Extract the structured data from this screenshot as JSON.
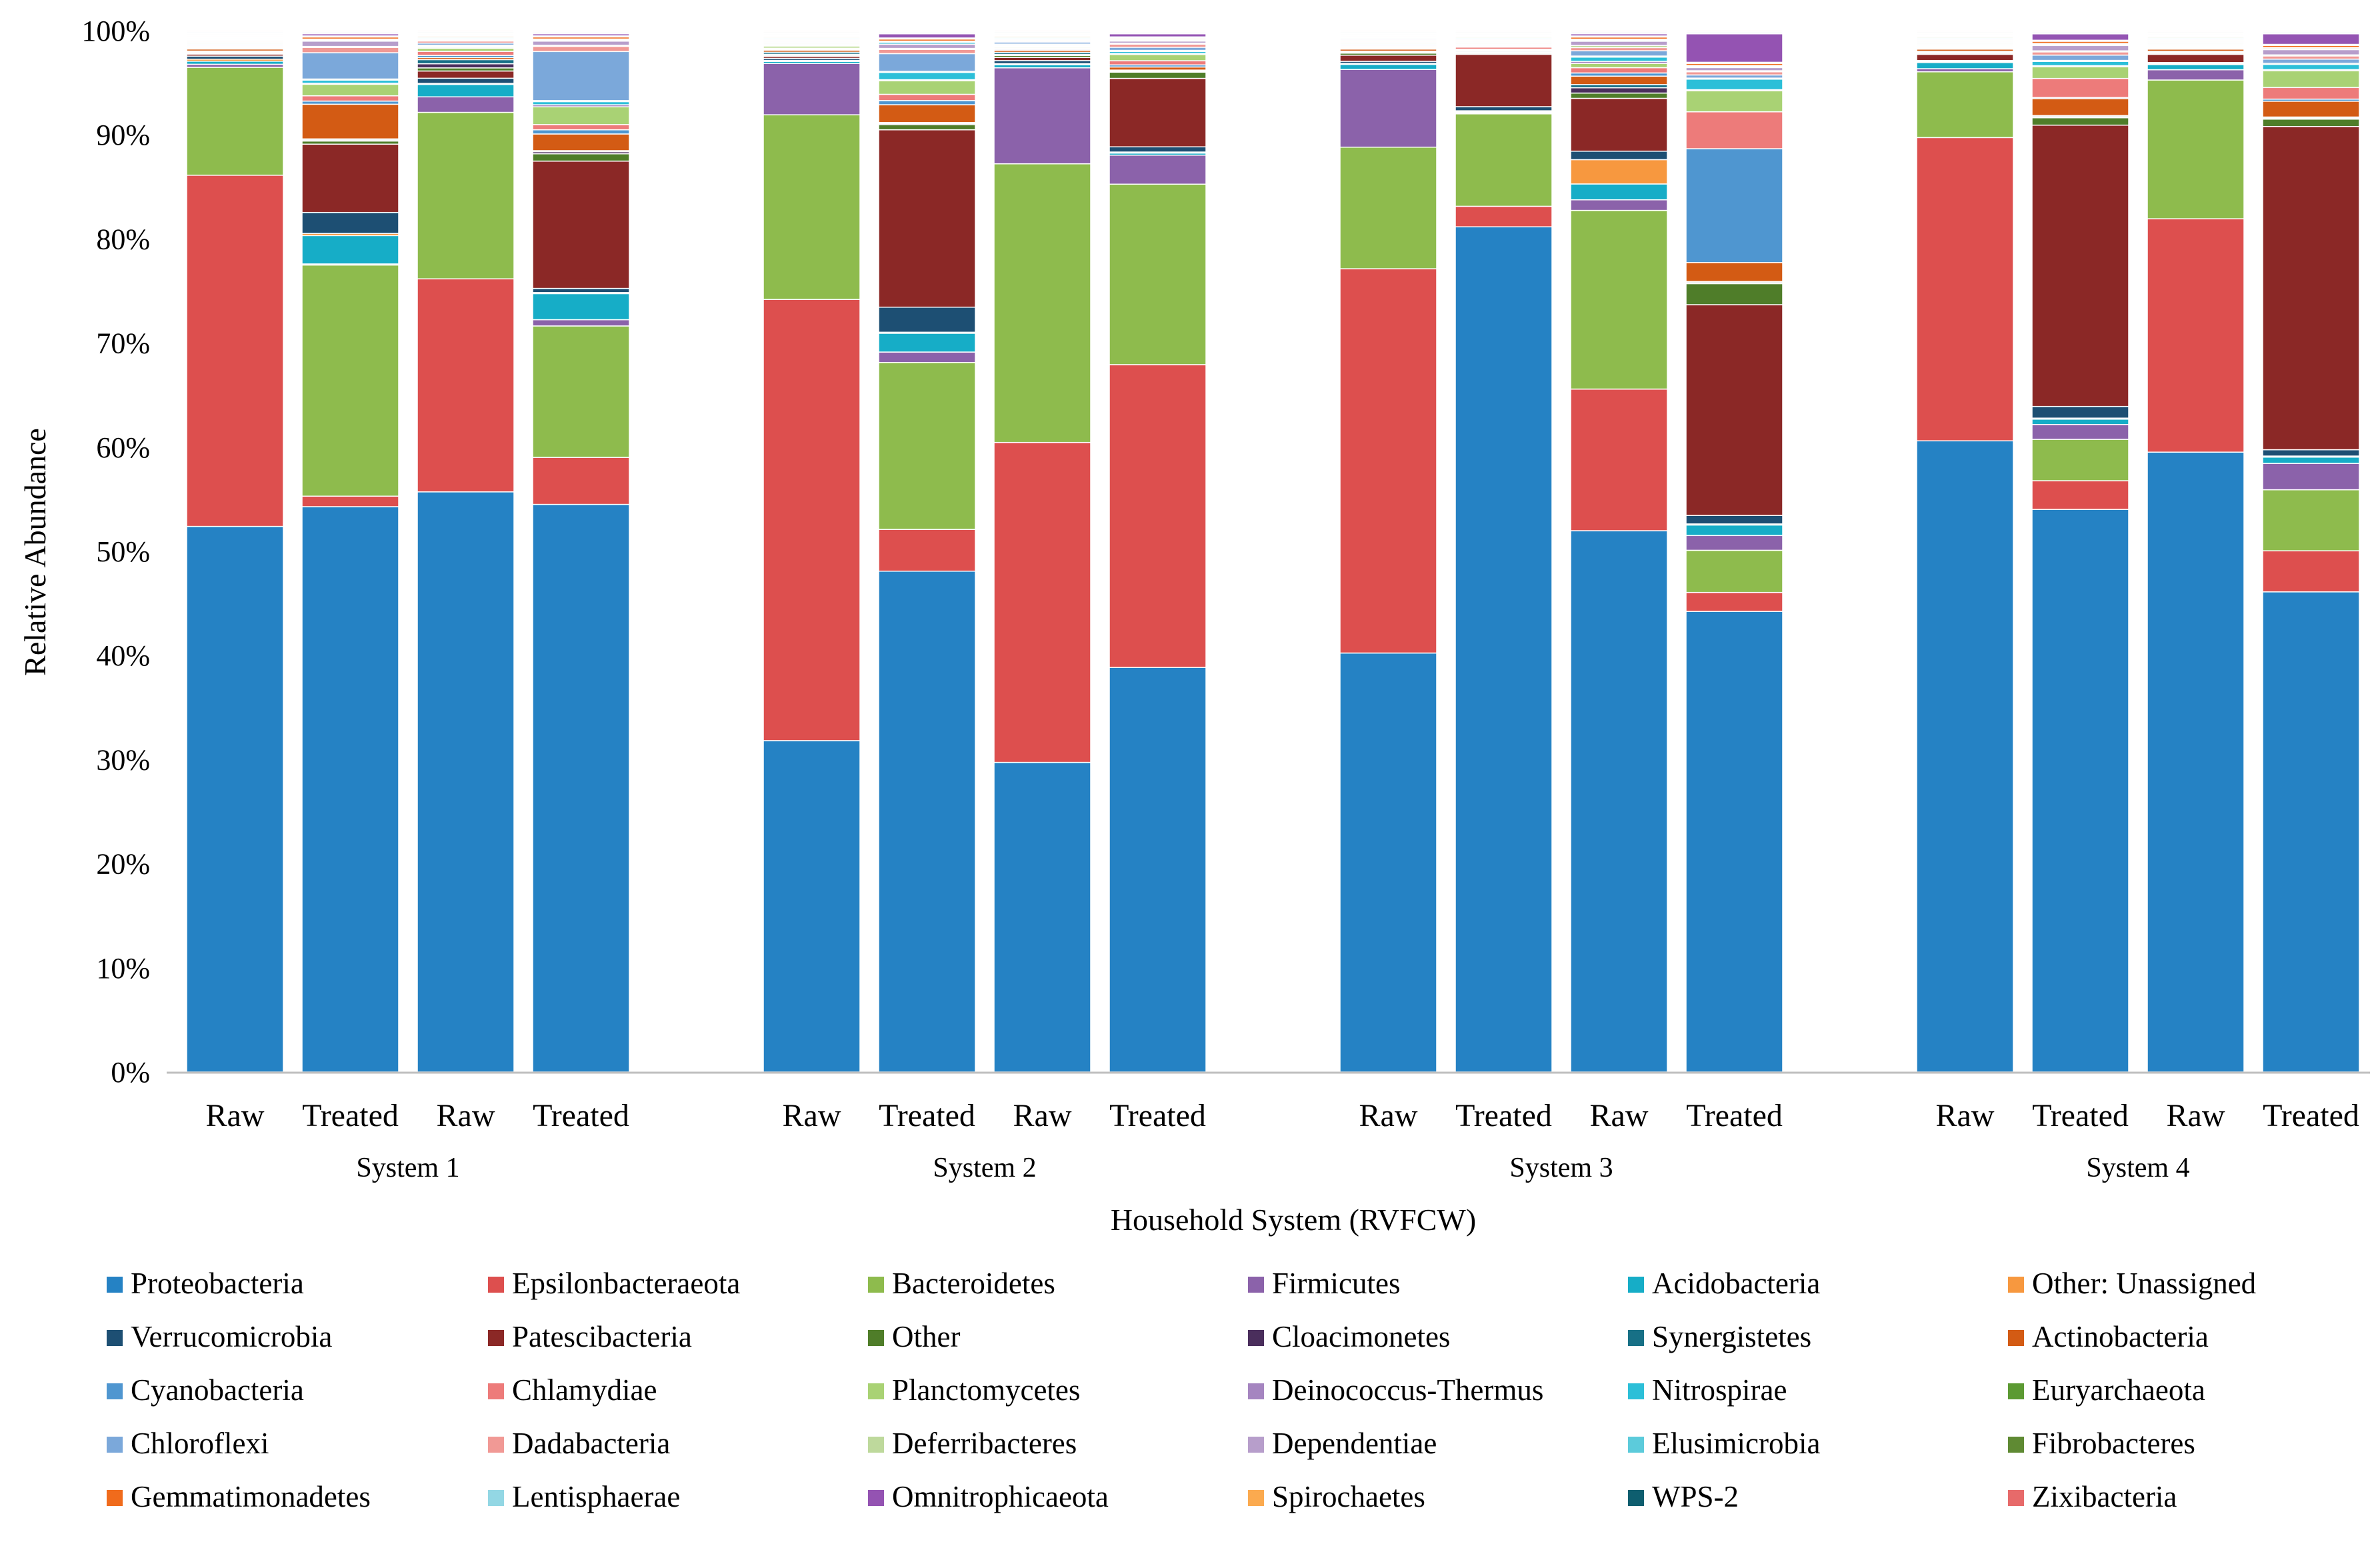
{
  "chart_data": {
    "type": "stacked_bar_100",
    "ylabel": "Relative Abundance",
    "xlabel": "Household System (RVFCW)",
    "ylim": [
      0,
      100
    ],
    "ytick_labels": [
      "0%",
      "10%",
      "20%",
      "30%",
      "40%",
      "50%",
      "60%",
      "70%",
      "80%",
      "90%",
      "100%"
    ],
    "legend_position": "bottom",
    "groups": [
      "System 1",
      "System 2",
      "System 3",
      "System 4"
    ],
    "categories": [
      "Raw",
      "Treated",
      "Raw",
      "Treated",
      "Raw",
      "Treated",
      "Raw",
      "Treated",
      "Raw",
      "Treated",
      "Raw",
      "Treated",
      "Raw",
      "Treated",
      "Raw",
      "Treated"
    ],
    "group_index": [
      0,
      0,
      0,
      0,
      1,
      1,
      1,
      1,
      2,
      2,
      2,
      2,
      3,
      3,
      3,
      3
    ],
    "series": [
      {
        "name": "Proteobacteria",
        "color": "#2582c4",
        "values": [
          53.6,
          53.8,
          56.1,
          54.4,
          32.3,
          48.0,
          30.0,
          39.0,
          41.0,
          82.3,
          51.2,
          43.7,
          61.4,
          53.0,
          60.3,
          45.6
        ]
      },
      {
        "name": "Epsilonbacteraeota",
        "color": "#dd4f4e",
        "values": [
          34.5,
          1.0,
          20.6,
          4.5,
          43.0,
          4.0,
          31.0,
          29.2,
          37.6,
          2.0,
          13.4,
          1.8,
          29.5,
          2.7,
          22.7,
          3.9
        ]
      },
      {
        "name": "Bacteroidetes",
        "color": "#8ebb4d",
        "values": [
          10.6,
          22.0,
          16.1,
          12.6,
          18.0,
          16.0,
          27.0,
          17.4,
          11.9,
          9.0,
          16.9,
          4.0,
          6.4,
          3.9,
          13.5,
          5.8
        ]
      },
      {
        "name": "Firmicutes",
        "color": "#8b62aa",
        "values": [
          0.3,
          0.1,
          1.5,
          0.6,
          5.0,
          1.0,
          9.3,
          2.8,
          7.6,
          0.1,
          1.0,
          1.4,
          0.3,
          1.4,
          1.0,
          2.5
        ]
      },
      {
        "name": "Acidobacteria",
        "color": "#16adc7",
        "values": [
          0.3,
          2.7,
          1.2,
          2.5,
          0.2,
          1.8,
          0.3,
          0.2,
          0.5,
          0.1,
          1.5,
          1.0,
          0.6,
          0.5,
          0.5,
          0.6
        ]
      },
      {
        "name": "Other: Unassigned",
        "color": "#f7983f",
        "values": [
          0.2,
          0.2,
          0.1,
          0.1,
          0.1,
          0.1,
          0.1,
          0.1,
          0.1,
          0.1,
          2.3,
          0.1,
          0.1,
          0.1,
          0.1,
          0.1
        ]
      },
      {
        "name": "Verrucomicrobia",
        "color": "#1d4f73",
        "values": [
          0.3,
          2.0,
          0.5,
          0.4,
          0.2,
          2.4,
          0.3,
          0.5,
          0.2,
          0.4,
          0.8,
          0.8,
          0.1,
          1.1,
          0.1,
          0.6
        ]
      },
      {
        "name": "Patescibacteria",
        "color": "#8b2826",
        "values": [
          0.2,
          6.5,
          0.7,
          12.2,
          0.2,
          17.0,
          0.3,
          6.6,
          0.6,
          5.1,
          5.0,
          20.0,
          0.6,
          26.5,
          0.8,
          30.7
        ]
      },
      {
        "name": "Other",
        "color": "#4f7d29",
        "values": [
          0.1,
          0.3,
          0.3,
          0.7,
          0.1,
          0.5,
          0.2,
          0.6,
          0.2,
          0.1,
          0.5,
          2.0,
          0.1,
          0.7,
          0.1,
          0.7
        ]
      },
      {
        "name": "Cloacimonetes",
        "color": "#4a2e5c",
        "values": [
          0.1,
          0.1,
          0.4,
          0.2,
          0.1,
          0.1,
          0.1,
          0.1,
          0.1,
          0.1,
          0.5,
          0.1,
          0.1,
          0.1,
          0.1,
          0.1
        ]
      },
      {
        "name": "Synergistetes",
        "color": "#177086",
        "values": [
          0.1,
          0.1,
          0.4,
          0.1,
          0.2,
          0.1,
          0.2,
          0.1,
          0.1,
          0.1,
          0.3,
          0.1,
          0.1,
          0.1,
          0.1,
          0.1
        ]
      },
      {
        "name": "Actinobacteria",
        "color": "#d35b14",
        "values": [
          0.2,
          3.3,
          0.2,
          1.6,
          0.2,
          1.7,
          0.2,
          0.3,
          0.2,
          0.1,
          0.8,
          1.8,
          0.2,
          1.6,
          0.2,
          1.5
        ]
      },
      {
        "name": "Cyanobacteria",
        "color": "#4f96d0",
        "values": [
          0.1,
          0.3,
          0.2,
          0.4,
          0.1,
          0.4,
          0.1,
          0.2,
          0.1,
          0.1,
          0.3,
          10.8,
          0.1,
          0.1,
          0.1,
          0.2
        ]
      },
      {
        "name": "Chlamydiae",
        "color": "#ed7b7a",
        "values": [
          0.1,
          0.5,
          0.4,
          0.5,
          0.1,
          0.6,
          0.1,
          0.4,
          0.1,
          0.2,
          0.5,
          3.5,
          0.1,
          1.8,
          0.1,
          1.1
        ]
      },
      {
        "name": "Planctomycetes",
        "color": "#a9d274",
        "values": [
          0.1,
          1.1,
          0.3,
          1.7,
          0.2,
          1.3,
          0.1,
          0.6,
          0.1,
          0.1,
          0.4,
          2.0,
          0.1,
          1.1,
          0.1,
          1.6
        ]
      },
      {
        "name": "Deinococcus-Thermus",
        "color": "#a585c0",
        "values": [
          0.1,
          0.1,
          0.1,
          0.2,
          0.1,
          0.1,
          0.1,
          0.1,
          0.1,
          0.1,
          0.2,
          0.1,
          0.1,
          0.1,
          0.1,
          0.1
        ]
      },
      {
        "name": "Nitrospirae",
        "color": "#2cbfd8",
        "values": [
          0.1,
          0.3,
          0.1,
          0.3,
          0.1,
          0.7,
          0.1,
          0.2,
          0.1,
          0.1,
          0.4,
          1.0,
          0.1,
          0.4,
          0.1,
          0.5
        ]
      },
      {
        "name": "Euryarchaeota",
        "color": "#5c9a33",
        "values": [
          0.1,
          0.1,
          0.1,
          0.1,
          0.1,
          0.1,
          0.1,
          0.1,
          0.1,
          0.1,
          0.1,
          0.1,
          0.1,
          0.1,
          0.1,
          0.1
        ]
      },
      {
        "name": "Chloroflexi",
        "color": "#7ba8da",
        "values": [
          0.1,
          2.5,
          0.2,
          4.7,
          0.1,
          1.7,
          0.2,
          0.3,
          0.1,
          0.1,
          0.5,
          0.3,
          0.1,
          0.5,
          0.1,
          0.4
        ]
      },
      {
        "name": "Dadabacteria",
        "color": "#f19995",
        "values": [
          0.1,
          0.5,
          0.2,
          0.5,
          0.1,
          0.4,
          0.1,
          0.3,
          0.1,
          0.1,
          0.3,
          0.3,
          0.1,
          0.3,
          0.1,
          0.3
        ]
      },
      {
        "name": "Deferribacteres",
        "color": "#bed99c",
        "values": [
          0.1,
          0.1,
          0.1,
          0.1,
          0.1,
          0.1,
          0.1,
          0.1,
          0.1,
          0.1,
          0.2,
          0.1,
          0.1,
          0.1,
          0.1,
          0.1
        ]
      },
      {
        "name": "Dependentiae",
        "color": "#b79ecb",
        "values": [
          0.1,
          0.5,
          0.1,
          0.4,
          0.1,
          0.4,
          0.1,
          0.2,
          0.1,
          0.1,
          0.4,
          0.3,
          0.1,
          0.5,
          0.1,
          0.5
        ]
      },
      {
        "name": "Elusimicrobia",
        "color": "#5ccbdb",
        "values": [
          0.1,
          0.1,
          0.1,
          0.1,
          0.1,
          0.2,
          0.1,
          0.1,
          0.1,
          0.1,
          0.1,
          0.1,
          0.1,
          0.1,
          0.1,
          0.1
        ]
      },
      {
        "name": "Fibrobacteres",
        "color": "#5f8a33",
        "values": [
          0.1,
          0.1,
          0.1,
          0.1,
          0.1,
          0.1,
          0.1,
          0.1,
          0.1,
          0.1,
          0.1,
          0.1,
          0.1,
          0.1,
          0.1,
          0.1
        ]
      },
      {
        "name": "Gemmatimonadetes",
        "color": "#f06b1c",
        "values": [
          0.1,
          0.2,
          0.1,
          0.2,
          0.1,
          0.2,
          0.1,
          0.1,
          0.1,
          0.1,
          0.2,
          0.2,
          0.1,
          0.2,
          0.1,
          0.2
        ]
      },
      {
        "name": "Lentisphaerae",
        "color": "#93d7e4",
        "values": [
          0.1,
          0.1,
          0.1,
          0.1,
          0.1,
          0.1,
          0.1,
          0.1,
          0.1,
          0.1,
          0.1,
          0.1,
          0.1,
          0.1,
          0.1,
          0.1
        ]
      },
      {
        "name": "Omnitrophicaeota",
        "color": "#9453b2",
        "values": [
          0.1,
          0.2,
          0.1,
          0.2,
          0.1,
          0.4,
          0.1,
          0.3,
          0.1,
          0.1,
          0.2,
          2.7,
          0.1,
          0.6,
          0.1,
          1.0
        ]
      },
      {
        "name": "Spirochaetes",
        "color": "#fbaa4f",
        "values": [
          0.1,
          0.1,
          0.1,
          0.1,
          0.1,
          0.1,
          0.1,
          0.1,
          0.1,
          0.1,
          0.1,
          0.1,
          0.1,
          0.1,
          0.1,
          0.1
        ]
      },
      {
        "name": "WPS-2",
        "color": "#0e5e6f",
        "values": [
          0.1,
          0.1,
          0.1,
          0.1,
          0.1,
          0.1,
          0.1,
          0.1,
          0.1,
          0.1,
          0.1,
          0.1,
          0.1,
          0.1,
          0.1,
          0.1
        ]
      },
      {
        "name": "Zixibacteria",
        "color": "#e76a6a",
        "values": [
          0.1,
          0.1,
          0.1,
          0.1,
          0.1,
          0.1,
          0.1,
          0.1,
          0.1,
          0.1,
          0.1,
          0.1,
          0.1,
          0.1,
          0.1,
          0.1
        ]
      }
    ]
  }
}
